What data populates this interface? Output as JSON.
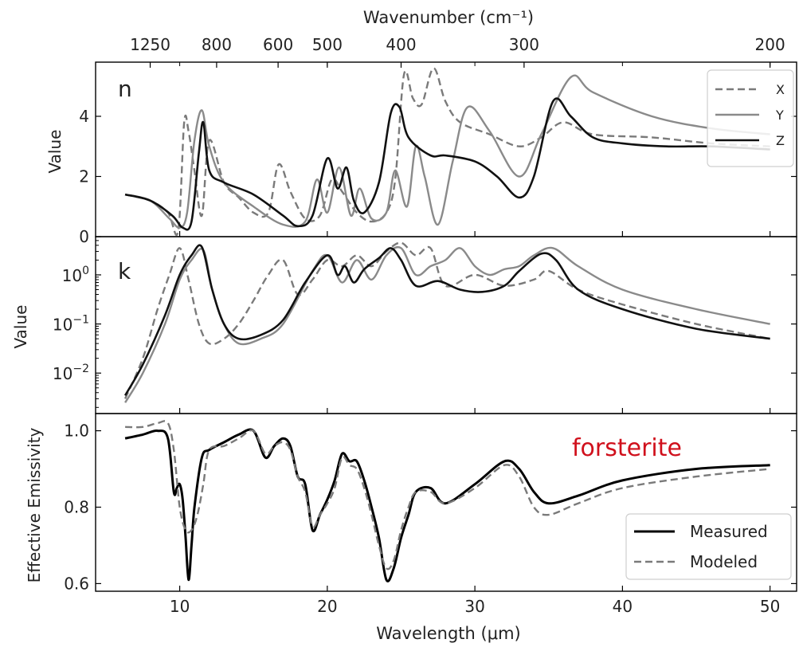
{
  "chart_data": [
    {
      "type": "line",
      "panel_label": "n",
      "ylabel": "Value",
      "top_axis_label": "Wavenumber (cm⁻¹)",
      "top_tick_labels": [
        "1250",
        "800",
        "600",
        "500",
        "400",
        "300",
        "200"
      ],
      "top_tick_wavenumbers": [
        1250,
        800,
        600,
        500,
        400,
        300,
        200
      ],
      "xlim": [
        4.3,
        51.8
      ],
      "ylim": [
        0,
        5.8
      ],
      "yticks": [
        0,
        2,
        4
      ],
      "ytick_labels": [
        "0",
        "2",
        "4"
      ],
      "legend": {
        "placement": "top-right",
        "entries": [
          "X",
          "Y",
          "Z"
        ]
      },
      "series": [
        {
          "name": "X",
          "style": "dashed",
          "color": "#7a7a7a",
          "x": [
            6.3,
            8.0,
            9.2,
            9.9,
            10.3,
            10.6,
            11.0,
            11.5,
            12.0,
            13.0,
            14.0,
            15.0,
            16.0,
            16.7,
            17.5,
            18.5,
            19.5,
            20.3,
            21.0,
            22.0,
            23.0,
            24.0,
            24.6,
            25.2,
            25.8,
            26.4,
            27.2,
            28.0,
            29.0,
            31.0,
            33.0,
            34.5,
            36.0,
            38.0,
            42.0,
            46.0,
            50.0
          ],
          "y": [
            1.4,
            1.2,
            0.8,
            0.2,
            3.8,
            3.5,
            2.2,
            0.7,
            3.2,
            1.8,
            1.3,
            0.8,
            0.8,
            2.4,
            1.5,
            0.6,
            0.7,
            1.9,
            1.5,
            0.8,
            0.5,
            0.8,
            1.9,
            5.4,
            4.6,
            4.4,
            5.6,
            4.5,
            3.8,
            3.4,
            3.0,
            3.3,
            3.8,
            3.4,
            3.3,
            3.1,
            3.0
          ]
        },
        {
          "name": "Y",
          "style": "solid",
          "color": "#8a8a8a",
          "x": [
            6.3,
            8.0,
            9.3,
            10.0,
            10.5,
            11.0,
            11.5,
            12.0,
            13.0,
            15.0,
            17.0,
            18.5,
            19.3,
            20.0,
            20.8,
            21.6,
            22.2,
            23.0,
            24.0,
            24.6,
            25.4,
            26.0,
            26.6,
            27.5,
            28.5,
            29.5,
            31.0,
            33.0,
            34.5,
            36.5,
            38.0,
            42.0,
            46.0,
            50.0
          ],
          "y": [
            1.4,
            1.2,
            0.6,
            0.3,
            0.8,
            3.2,
            4.2,
            3.0,
            1.8,
            1.0,
            0.4,
            0.5,
            1.9,
            0.8,
            2.3,
            0.7,
            1.6,
            0.6,
            0.8,
            2.2,
            1.0,
            3.0,
            2.0,
            0.4,
            2.5,
            4.3,
            3.5,
            2.0,
            3.4,
            5.3,
            4.8,
            4.0,
            3.6,
            3.4
          ]
        },
        {
          "name": "Z",
          "style": "solid",
          "color": "#111111",
          "x": [
            6.3,
            8.0,
            9.5,
            10.2,
            10.8,
            11.3,
            11.6,
            12.0,
            13.0,
            15.0,
            17.0,
            18.0,
            19.0,
            20.0,
            20.7,
            21.3,
            21.8,
            22.5,
            23.5,
            24.3,
            24.9,
            25.5,
            27.0,
            28.0,
            30.0,
            31.5,
            33.0,
            34.0,
            35.3,
            36.5,
            38.0,
            40.0,
            43.0,
            46.0,
            50.0
          ],
          "y": [
            1.4,
            1.2,
            0.7,
            0.3,
            0.5,
            2.8,
            3.8,
            2.2,
            1.8,
            1.4,
            0.7,
            0.35,
            0.7,
            2.6,
            1.6,
            2.3,
            1.2,
            0.8,
            1.8,
            4.1,
            4.3,
            3.3,
            2.7,
            2.7,
            2.5,
            2.0,
            1.3,
            2.0,
            4.5,
            4.0,
            3.3,
            3.1,
            3.0,
            3.0,
            2.9
          ]
        }
      ]
    },
    {
      "type": "line",
      "panel_label": "k",
      "ylabel": "Value",
      "yscale": "log",
      "xlim": [
        4.3,
        51.8
      ],
      "ylim": [
        0.0015,
        6.0
      ],
      "yticks": [
        0.01,
        0.1,
        1
      ],
      "ytick_labels": [
        [
          "10",
          "−2"
        ],
        [
          "10",
          "−1"
        ],
        [
          "10",
          "0"
        ]
      ],
      "series": [
        {
          "name": "X",
          "style": "dashed",
          "color": "#7a7a7a",
          "x": [
            6.3,
            7.5,
            8.5,
            9.3,
            10.0,
            10.6,
            11.3,
            12.0,
            13.0,
            14.0,
            15.0,
            16.0,
            17.0,
            18.0,
            19.0,
            20.0,
            21.0,
            22.0,
            23.0,
            24.0,
            25.0,
            26.0,
            27.0,
            28.0,
            30.0,
            32.0,
            34.0,
            35.0,
            37.0,
            40.0,
            45.0,
            50.0
          ],
          "y": [
            0.003,
            0.02,
            0.2,
            1.0,
            3.5,
            0.8,
            0.1,
            0.04,
            0.05,
            0.1,
            0.3,
            1.0,
            2.0,
            0.4,
            0.8,
            2.0,
            1.5,
            2.5,
            1.5,
            3.0,
            4.5,
            2.5,
            3.5,
            0.6,
            1.0,
            0.6,
            0.8,
            1.2,
            0.5,
            0.25,
            0.1,
            0.05
          ]
        },
        {
          "name": "Y",
          "style": "solid",
          "color": "#8a8a8a",
          "x": [
            6.3,
            7.5,
            9.0,
            10.0,
            10.8,
            11.6,
            12.2,
            13.0,
            14.0,
            15.5,
            17.0,
            19.0,
            20.0,
            21.0,
            22.0,
            23.0,
            24.0,
            25.0,
            26.0,
            27.0,
            28.0,
            29.0,
            30.0,
            31.0,
            32.0,
            33.0,
            34.0,
            35.3,
            37.0,
            40.0,
            45.0,
            50.0
          ],
          "y": [
            0.0025,
            0.01,
            0.1,
            0.8,
            2.0,
            3.2,
            0.5,
            0.1,
            0.04,
            0.05,
            0.1,
            1.2,
            2.5,
            0.7,
            2.0,
            0.8,
            2.5,
            3.5,
            1.0,
            1.5,
            2.0,
            3.5,
            1.5,
            1.0,
            1.3,
            1.5,
            2.5,
            3.5,
            1.5,
            0.5,
            0.2,
            0.1
          ]
        },
        {
          "name": "Z",
          "style": "solid",
          "color": "#111111",
          "x": [
            6.3,
            7.5,
            9.0,
            10.0,
            10.8,
            11.5,
            12.2,
            13.0,
            14.0,
            15.5,
            17.0,
            18.5,
            20.0,
            20.7,
            21.2,
            21.8,
            22.5,
            23.5,
            24.3,
            25.0,
            26.0,
            27.5,
            29.0,
            30.5,
            32.0,
            33.0,
            34.5,
            35.5,
            37.0,
            40.0,
            45.0,
            50.0
          ],
          "y": [
            0.0035,
            0.015,
            0.15,
            1.0,
            2.5,
            3.7,
            0.5,
            0.1,
            0.05,
            0.06,
            0.12,
            0.7,
            2.5,
            1.0,
            1.5,
            0.7,
            1.3,
            2.2,
            3.5,
            2.0,
            0.6,
            0.75,
            0.5,
            0.45,
            0.6,
            1.2,
            2.7,
            2.0,
            0.5,
            0.2,
            0.08,
            0.05
          ]
        }
      ]
    },
    {
      "type": "line",
      "ylabel": "Effective Emissivity",
      "xlabel": "Wavelength (μm)",
      "xlim": [
        4.3,
        51.8
      ],
      "xticks": [
        10,
        20,
        30,
        40,
        50
      ],
      "xtick_labels": [
        "10",
        "20",
        "30",
        "40",
        "50"
      ],
      "ylim": [
        0.58,
        1.045
      ],
      "yticks": [
        0.6,
        0.8,
        1.0
      ],
      "ytick_labels": [
        "0.6",
        "0.8",
        "1.0"
      ],
      "annotation": {
        "text": "forsterite",
        "color": "#d0101c"
      },
      "legend": {
        "placement": "bottom-right",
        "entries": [
          "Measured",
          "Modeled"
        ]
      },
      "series": [
        {
          "name": "Measured",
          "style": "solid",
          "color": "#000000",
          "x": [
            6.3,
            7.5,
            8.5,
            9.2,
            9.6,
            9.8,
            10.0,
            10.2,
            10.4,
            10.6,
            10.8,
            11.0,
            11.5,
            12.0,
            13.0,
            14.0,
            15.0,
            15.8,
            16.4,
            17.0,
            17.5,
            18.0,
            18.5,
            19.0,
            19.5,
            20.0,
            20.5,
            21.0,
            21.5,
            22.0,
            22.5,
            23.0,
            23.5,
            24.0,
            24.5,
            25.0,
            25.5,
            26.0,
            27.0,
            28.0,
            30.0,
            32.0,
            33.0,
            34.0,
            35.0,
            37.0,
            40.0,
            45.0,
            50.0
          ],
          "y": [
            0.98,
            0.99,
            1.0,
            0.98,
            0.84,
            0.85,
            0.86,
            0.82,
            0.72,
            0.61,
            0.7,
            0.8,
            0.93,
            0.95,
            0.97,
            0.99,
            1.0,
            0.93,
            0.96,
            0.98,
            0.96,
            0.88,
            0.86,
            0.74,
            0.78,
            0.82,
            0.87,
            0.94,
            0.92,
            0.92,
            0.87,
            0.8,
            0.72,
            0.61,
            0.64,
            0.72,
            0.78,
            0.84,
            0.85,
            0.81,
            0.86,
            0.92,
            0.9,
            0.84,
            0.81,
            0.83,
            0.87,
            0.9,
            0.91
          ]
        },
        {
          "name": "Modeled",
          "style": "dashed",
          "color": "#7a7a7a",
          "x": [
            6.3,
            7.5,
            8.5,
            9.2,
            9.6,
            10.0,
            10.4,
            10.8,
            11.2,
            11.6,
            12.0,
            13.0,
            14.0,
            15.0,
            15.8,
            16.4,
            17.0,
            17.5,
            18.0,
            18.5,
            19.0,
            19.5,
            20.0,
            20.5,
            21.0,
            21.5,
            22.0,
            22.5,
            23.0,
            23.5,
            24.0,
            24.5,
            25.0,
            25.5,
            26.0,
            27.0,
            28.0,
            30.0,
            32.0,
            33.0,
            34.0,
            35.0,
            37.0,
            40.0,
            45.0,
            50.0
          ],
          "y": [
            1.01,
            1.01,
            1.02,
            1.02,
            0.95,
            0.8,
            0.74,
            0.74,
            0.78,
            0.86,
            0.95,
            0.96,
            0.98,
            1.0,
            0.94,
            0.96,
            0.97,
            0.95,
            0.88,
            0.84,
            0.75,
            0.78,
            0.81,
            0.85,
            0.93,
            0.91,
            0.9,
            0.85,
            0.78,
            0.7,
            0.64,
            0.66,
            0.74,
            0.8,
            0.84,
            0.84,
            0.81,
            0.85,
            0.91,
            0.88,
            0.8,
            0.78,
            0.81,
            0.85,
            0.88,
            0.9
          ]
        }
      ]
    }
  ]
}
